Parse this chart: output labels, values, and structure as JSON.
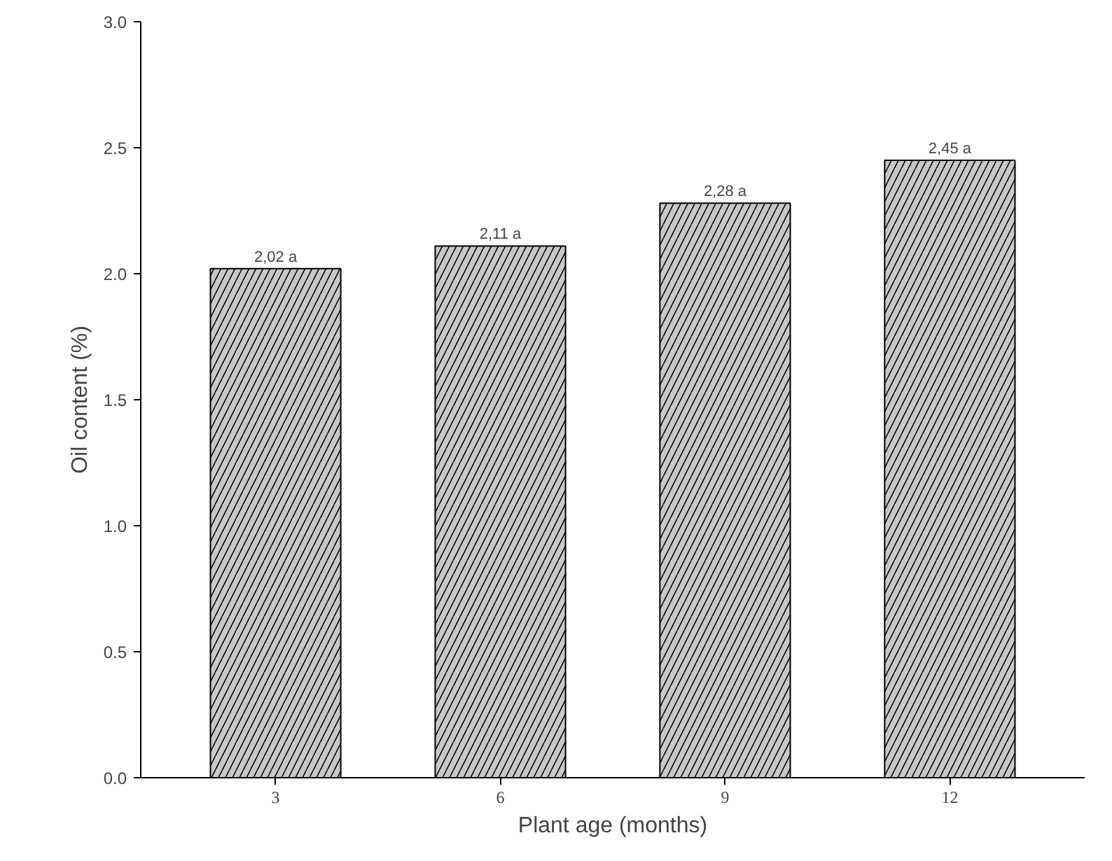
{
  "chart_data": {
    "type": "bar",
    "xlabel": "Plant age (months)",
    "ylabel": "Oil content (%)",
    "categories": [
      "3",
      "6",
      "9",
      "12"
    ],
    "values": [
      2.02,
      2.11,
      2.28,
      2.45
    ],
    "value_labels": [
      "2,02 a",
      "2,11 a",
      "2,28 a",
      "2,45 a"
    ],
    "color": "#c8c8c8",
    "ylim": [
      0,
      3
    ],
    "yticks": [
      {
        "value": 0,
        "label": "0.0"
      },
      0.5,
      {
        "value": 1,
        "label": "1.0"
      },
      1.5,
      {
        "value": 2,
        "label": "2.0"
      },
      2.5,
      {
        "value": 3,
        "label": "3.0"
      }
    ],
    "grid": false
  }
}
